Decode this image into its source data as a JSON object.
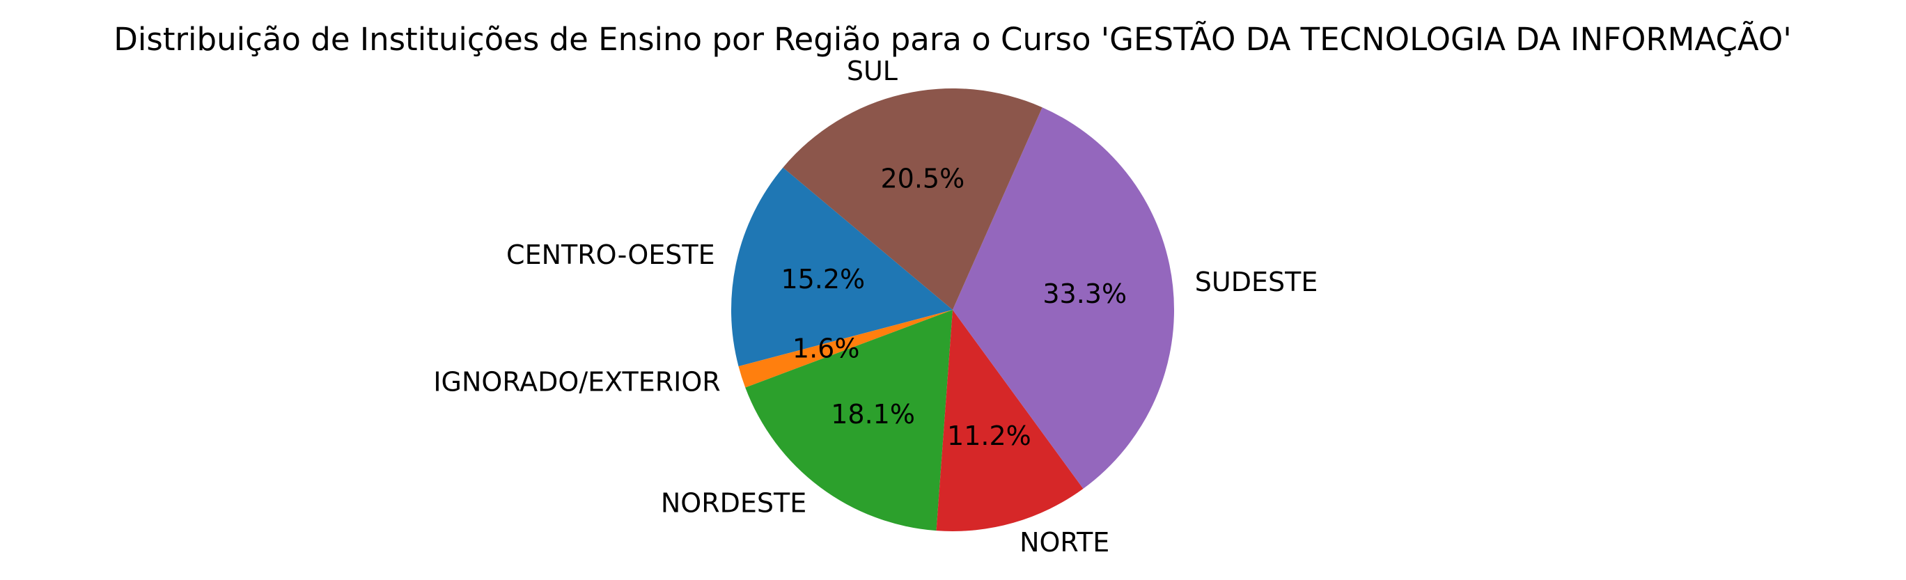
{
  "chart_data": {
    "type": "pie",
    "title": "Distribuição de Instituições de Ensino por Região para o Curso 'GESTÃO DA TECNOLOGIA DA INFORMAÇÃO'",
    "start_angle_deg": 140,
    "direction": "counterclockwise",
    "slices": [
      {
        "label": "CENTRO-OESTE",
        "value": 15.2,
        "pct_label": "15.2%",
        "color": "#1f77b4"
      },
      {
        "label": "IGNORADO/EXTERIOR",
        "value": 1.6,
        "pct_label": "1.6%",
        "color": "#ff7f0e"
      },
      {
        "label": "NORDESTE",
        "value": 18.1,
        "pct_label": "18.1%",
        "color": "#2ca02c"
      },
      {
        "label": "NORTE",
        "value": 11.2,
        "pct_label": "11.2%",
        "color": "#d62728"
      },
      {
        "label": "SUDESTE",
        "value": 33.3,
        "pct_label": "33.3%",
        "color": "#9467bd"
      },
      {
        "label": "SUL",
        "value": 20.5,
        "pct_label": "20.5%",
        "color": "#8c564b"
      }
    ]
  }
}
